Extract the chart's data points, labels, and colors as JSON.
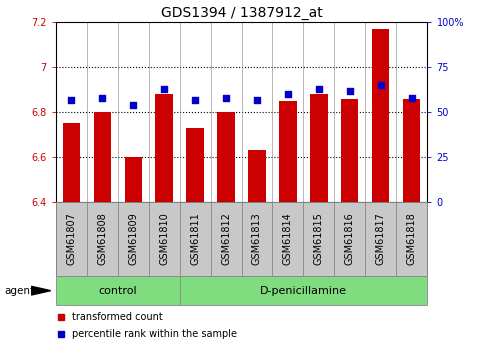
{
  "title": "GDS1394 / 1387912_at",
  "categories": [
    "GSM61807",
    "GSM61808",
    "GSM61809",
    "GSM61810",
    "GSM61811",
    "GSM61812",
    "GSM61813",
    "GSM61814",
    "GSM61815",
    "GSM61816",
    "GSM61817",
    "GSM61818"
  ],
  "bar_values": [
    6.75,
    6.8,
    6.6,
    6.88,
    6.73,
    6.8,
    6.63,
    6.85,
    6.88,
    6.86,
    7.17,
    6.86
  ],
  "percentile_values": [
    57,
    58,
    54,
    63,
    57,
    58,
    57,
    60,
    63,
    62,
    65,
    58
  ],
  "bar_color": "#cc0000",
  "percentile_color": "#0000cc",
  "ymin": 6.4,
  "ymax": 7.2,
  "yticks": [
    6.4,
    6.6,
    6.8,
    7.0,
    7.2
  ],
  "ytick_labels": [
    "6.4",
    "6.6",
    "6.8",
    "7",
    "7.2"
  ],
  "y2min": 0,
  "y2max": 100,
  "y2ticks": [
    0,
    25,
    50,
    75,
    100
  ],
  "y2ticklabels": [
    "0",
    "25",
    "50",
    "75",
    "100%"
  ],
  "xlabel_color": "#cc0000",
  "ylabel2_color": "#0000cc",
  "n_control": 4,
  "n_dpen": 8,
  "legend_items": [
    {
      "label": "transformed count",
      "color": "#cc0000"
    },
    {
      "label": "percentile rank within the sample",
      "color": "#0000cc"
    }
  ],
  "agent_label": "agent",
  "control_label": "control",
  "dpen_label": "D-penicillamine",
  "tick_bg_color": "#c8c8c8",
  "group_bg_color": "#7fdd7f",
  "group_border_color": "#888888",
  "title_fontsize": 10,
  "tick_fontsize": 7,
  "label_fontsize": 7,
  "bar_width": 0.55
}
